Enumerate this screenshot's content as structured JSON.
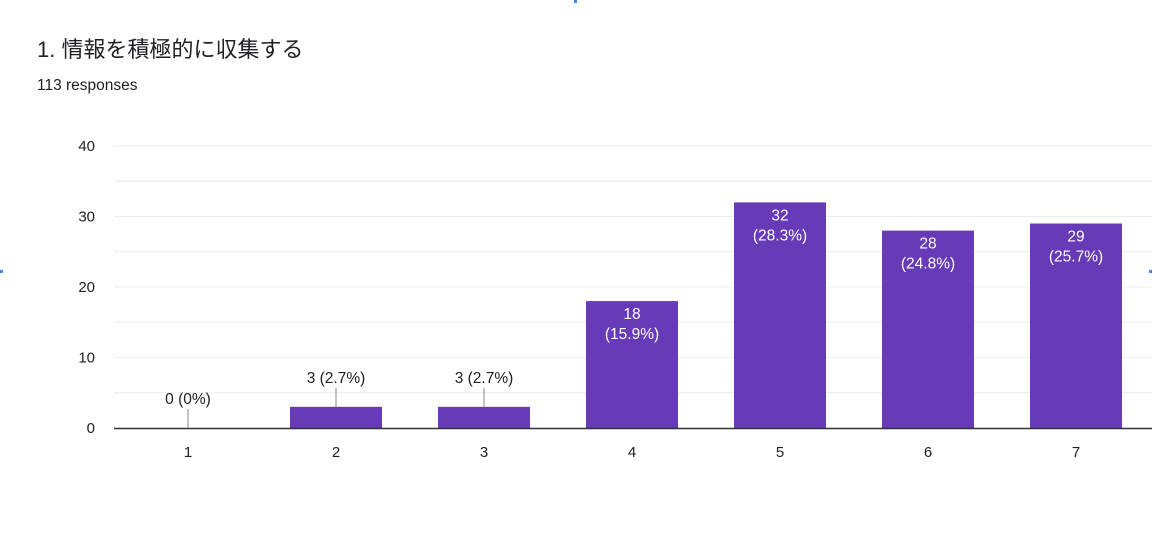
{
  "header": {
    "title": "1. 情報を積極的に収集する",
    "responses": "113 responses"
  },
  "colors": {
    "bar": "#673ab7",
    "grid": "#ececec",
    "axis": "#333333",
    "leader": "#888888"
  },
  "chart_data": {
    "type": "bar",
    "title": "1. 情報を積極的に収集する",
    "categories": [
      "1",
      "2",
      "3",
      "4",
      "5",
      "6",
      "7"
    ],
    "values": [
      0,
      3,
      3,
      18,
      32,
      28,
      29
    ],
    "labels": [
      "0 (0%)",
      "3 (2.7%)",
      "3 (2.7%)",
      "18 (15.9%)",
      "32 (28.3%)",
      "28 (24.8%)",
      "29 (25.7%)"
    ],
    "ylim": [
      0,
      40
    ],
    "yticks": [
      0,
      10,
      20,
      30,
      40
    ],
    "grid": true,
    "xlabel": "",
    "ylabel": ""
  }
}
